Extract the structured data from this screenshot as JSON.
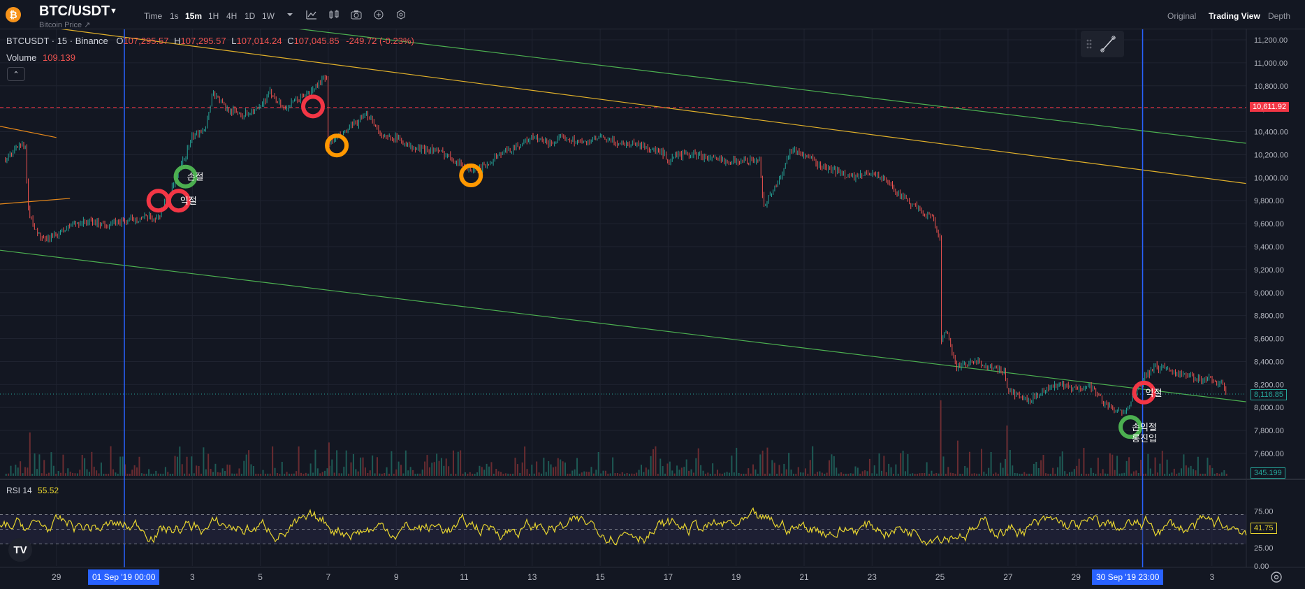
{
  "header": {
    "coin_glyph": "₿",
    "symbol": "BTC/USDT",
    "subtitle": "Bitcoin Price ↗",
    "timeframes": [
      "Time",
      "1s",
      "15m",
      "1H",
      "4H",
      "1D",
      "1W"
    ],
    "active_timeframe": "15m",
    "view_modes": [
      "Original",
      "Trading View",
      "Depth"
    ],
    "active_view_mode": "Trading View"
  },
  "legend": {
    "ticker": "BTCUSDT · 15 · Binance",
    "o_label": "O",
    "o_value": "107,295.57",
    "h_label": "H",
    "h_value": "107,295.57",
    "l_label": "L",
    "l_value": "107,014.24",
    "c_label": "C",
    "c_value": "107,045.85",
    "change": "-249.72 (-0.23%)",
    "volume_label": "Volume",
    "volume_value": "109.139",
    "rsi_label": "RSI 14",
    "rsi_value": "55.52"
  },
  "controls": {
    "collapse_glyph": "⌃"
  },
  "price_tags": {
    "horizontal_line": "10,611.92",
    "last_price": "8,116.85",
    "volume_last": "345.199",
    "rsi_last": "41.75"
  },
  "date_tags": [
    "01 Sep '19   00:00",
    "30 Sep '19   23:00"
  ],
  "footer": {
    "tv_logo": "TV"
  },
  "colors": {
    "background": "#131722",
    "up": "#26a69a",
    "down": "#ef5350",
    "rsi_line": "#e8d52f",
    "red_line": "#f23645",
    "blue_line": "#2962ff",
    "yellow_trend": "#e0b02a",
    "green_trend": "#4caf50",
    "marker_red": "#f23645",
    "marker_orange": "#ff9800",
    "marker_green": "#4caf50"
  },
  "chart_data": {
    "type": "candlestick",
    "symbol": "BTCUSDT",
    "interval": "15",
    "exchange": "Binance",
    "y_axis": {
      "ticks": [
        7600,
        7800,
        8000,
        8200,
        8400,
        8600,
        8800,
        9000,
        9200,
        9400,
        9600,
        9800,
        10000,
        10200,
        10400,
        10600,
        10800,
        11000,
        11200
      ],
      "tick_labels": [
        "7,600.00",
        "7,800.00",
        "8,000.00",
        "8,200.00",
        "8,400.00",
        "8,600.00",
        "8,800.00",
        "9,000.00",
        "9,200.00",
        "9,400.00",
        "9,600.00",
        "9,800.00",
        "10,000.00",
        "10,200.00",
        "10,400.00",
        "10,600.00",
        "10,800.00",
        "11,000.00",
        "11,200.00"
      ]
    },
    "x_axis": {
      "labels": [
        {
          "day": -1,
          "label": "29"
        },
        {
          "day": 1,
          "label": "01 Sep '19"
        },
        {
          "day": 3,
          "label": "3"
        },
        {
          "day": 5,
          "label": "5"
        },
        {
          "day": 7,
          "label": "7"
        },
        {
          "day": 9,
          "label": "9"
        },
        {
          "day": 11,
          "label": "11"
        },
        {
          "day": 13,
          "label": "13"
        },
        {
          "day": 15,
          "label": "15"
        },
        {
          "day": 17,
          "label": "17"
        },
        {
          "day": 19,
          "label": "19"
        },
        {
          "day": 21,
          "label": "21"
        },
        {
          "day": 23,
          "label": "23"
        },
        {
          "day": 25,
          "label": "25"
        },
        {
          "day": 27,
          "label": "27"
        },
        {
          "day": 29,
          "label": "29"
        },
        {
          "day": 30.96,
          "label": "30 Sep '19"
        },
        {
          "day": 33,
          "label": "3"
        }
      ]
    },
    "price_path": [
      [
        -2.5,
        10150
      ],
      [
        -2.1,
        10300
      ],
      [
        -1.9,
        10250
      ],
      [
        -1.85,
        9750
      ],
      [
        -1.7,
        9600
      ],
      [
        -1.4,
        9450
      ],
      [
        -1.0,
        9500
      ],
      [
        -0.5,
        9600
      ],
      [
        0,
        9620
      ],
      [
        0.5,
        9590
      ],
      [
        1.0,
        9620
      ],
      [
        1.5,
        9650
      ],
      [
        2.0,
        9650
      ],
      [
        2.2,
        9800
      ],
      [
        2.4,
        9900
      ],
      [
        2.6,
        10050
      ],
      [
        2.8,
        10200
      ],
      [
        3.0,
        10350
      ],
      [
        3.4,
        10450
      ],
      [
        3.6,
        10750
      ],
      [
        4.0,
        10600
      ],
      [
        4.5,
        10550
      ],
      [
        5.0,
        10600
      ],
      [
        5.3,
        10750
      ],
      [
        5.7,
        10600
      ],
      [
        6.2,
        10700
      ],
      [
        6.5,
        10750
      ],
      [
        6.8,
        10850
      ],
      [
        6.95,
        10850
      ],
      [
        7.0,
        10300
      ],
      [
        7.3,
        10350
      ],
      [
        7.7,
        10450
      ],
      [
        8.2,
        10550
      ],
      [
        8.6,
        10350
      ],
      [
        9.0,
        10350
      ],
      [
        9.5,
        10250
      ],
      [
        10.0,
        10250
      ],
      [
        10.5,
        10200
      ],
      [
        11.0,
        10100
      ],
      [
        11.3,
        10050
      ],
      [
        11.6,
        10100
      ],
      [
        12.0,
        10200
      ],
      [
        12.4,
        10250
      ],
      [
        13.0,
        10350
      ],
      [
        13.5,
        10300
      ],
      [
        14.0,
        10350
      ],
      [
        14.5,
        10300
      ],
      [
        15.0,
        10350
      ],
      [
        15.5,
        10300
      ],
      [
        16.0,
        10300
      ],
      [
        16.5,
        10250
      ],
      [
        16.9,
        10200
      ],
      [
        17.0,
        10100
      ],
      [
        17.2,
        10200
      ],
      [
        17.8,
        10200
      ],
      [
        18.5,
        10150
      ],
      [
        19.0,
        10150
      ],
      [
        19.7,
        10150
      ],
      [
        19.8,
        9750
      ],
      [
        20.0,
        9850
      ],
      [
        20.3,
        10000
      ],
      [
        20.6,
        10250
      ],
      [
        21.0,
        10200
      ],
      [
        21.5,
        10100
      ],
      [
        22.0,
        10050
      ],
      [
        22.5,
        10000
      ],
      [
        23.0,
        10050
      ],
      [
        23.5,
        9950
      ],
      [
        24.0,
        9800
      ],
      [
        24.5,
        9700
      ],
      [
        24.8,
        9650
      ],
      [
        25.0,
        9450
      ],
      [
        25.02,
        8500
      ],
      [
        25.05,
        8600
      ],
      [
        25.2,
        8650
      ],
      [
        25.5,
        8350
      ],
      [
        26.0,
        8400
      ],
      [
        26.5,
        8350
      ],
      [
        26.9,
        8300
      ],
      [
        27.0,
        8150
      ],
      [
        27.3,
        8100
      ],
      [
        27.6,
        8050
      ],
      [
        28.0,
        8150
      ],
      [
        28.5,
        8200
      ],
      [
        29.0,
        8150
      ],
      [
        29.4,
        8200
      ],
      [
        29.8,
        8050
      ],
      [
        30.2,
        7950
      ],
      [
        30.5,
        8000
      ],
      [
        30.8,
        8150
      ],
      [
        31.0,
        8250
      ],
      [
        31.3,
        8350
      ],
      [
        31.6,
        8350
      ],
      [
        32.0,
        8300
      ],
      [
        32.5,
        8250
      ],
      [
        33.0,
        8250
      ],
      [
        33.3,
        8200
      ],
      [
        33.45,
        8120
      ]
    ],
    "horizontal_line": 10611.92,
    "last_price": 8116.85,
    "vertical_lines": [
      1,
      30.96
    ],
    "trend_lines": [
      {
        "color": "yellow",
        "from": [
          -1.0,
          11300
        ],
        "to": [
          34.0,
          9950
        ]
      },
      {
        "color": "green",
        "from": [
          6.0,
          11300
        ],
        "to": [
          34.0,
          10300
        ]
      },
      {
        "color": "green",
        "from": [
          -2.7,
          9370
        ],
        "to": [
          34.0,
          8050
        ]
      },
      {
        "color": "orange",
        "from": [
          -2.7,
          10450
        ],
        "to": [
          -1.0,
          10350
        ]
      },
      {
        "color": "orange",
        "from": [
          -2.7,
          9770
        ],
        "to": [
          -0.6,
          9820
        ]
      }
    ],
    "markers": [
      {
        "day": 2.0,
        "price": 9800,
        "color": "red",
        "label": ""
      },
      {
        "day": 2.6,
        "price": 9800,
        "color": "red",
        "label": "익절"
      },
      {
        "day": 2.8,
        "price": 10010,
        "color": "green",
        "label": "손절"
      },
      {
        "day": 6.55,
        "price": 10620,
        "color": "red",
        "label": ""
      },
      {
        "day": 7.25,
        "price": 10280,
        "color": "orange",
        "label": ""
      },
      {
        "day": 11.2,
        "price": 10020,
        "color": "orange",
        "label": ""
      },
      {
        "day": 31.0,
        "price": 8130,
        "color": "red",
        "label": "익절"
      },
      {
        "day": 30.6,
        "price": 7830,
        "color": "green",
        "label": "손익절"
      },
      {
        "day": 30.6,
        "price": 7830,
        "color": "green",
        "label": "롱진입"
      }
    ],
    "volume_spikes": [
      {
        "day": -1.8,
        "value": 345
      },
      {
        "day": 7.0,
        "value": 265
      },
      {
        "day": 25.0,
        "value": 600
      },
      {
        "day": 26.95,
        "value": 400
      },
      {
        "day": 25.5,
        "value": 280
      }
    ],
    "rsi": {
      "overbought": 70,
      "oversold": 30,
      "mid": 50,
      "axis_ticks": [
        "75.00",
        "50.00",
        "25.00",
        "0.00"
      ],
      "last": 41.75
    }
  }
}
